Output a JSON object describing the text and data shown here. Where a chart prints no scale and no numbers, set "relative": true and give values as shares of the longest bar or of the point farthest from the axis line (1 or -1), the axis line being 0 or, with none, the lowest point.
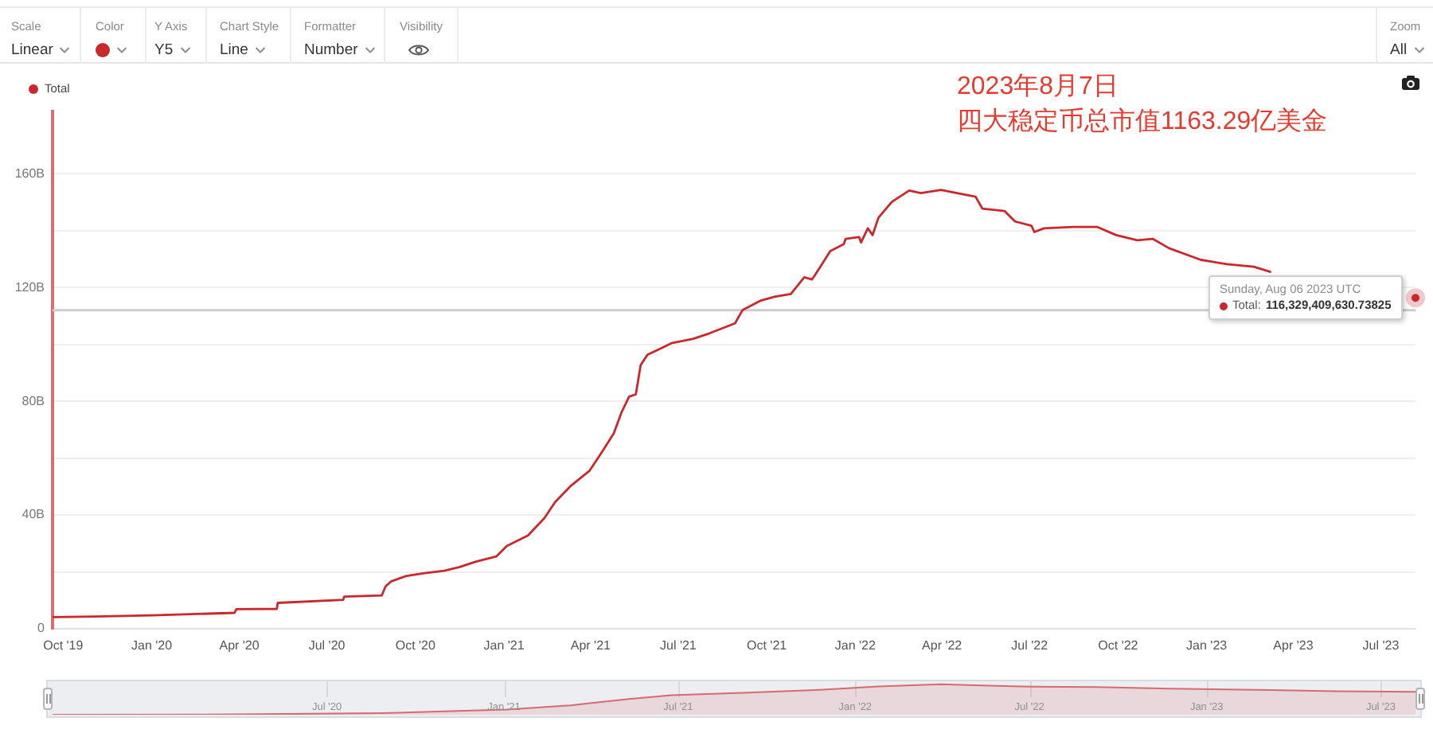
{
  "chart_data": [
    {
      "type": "line",
      "title": "2023年8月7日",
      "subtitle": "四大稳定币总市值1163.29亿美金",
      "x": [
        "2019-09-20",
        "2019-11-03",
        "2020-01-02",
        "2020-03-27",
        "2020-03-29",
        "2020-05-10",
        "2020-05-11",
        "2020-07-18",
        "2020-07-19",
        "2020-08-27",
        "2020-08-31",
        "2020-09-06",
        "2020-09-22",
        "2020-10-09",
        "2020-10-31",
        "2020-11-16",
        "2020-12-03",
        "2020-12-24",
        "2021-01-04",
        "2021-01-26",
        "2021-02-12",
        "2021-02-23",
        "2021-03-11",
        "2021-03-31",
        "2021-04-11",
        "2021-04-25",
        "2021-05-03",
        "2021-05-11",
        "2021-05-18",
        "2021-05-23",
        "2021-05-30",
        "2021-06-13",
        "2021-06-24",
        "2021-07-16",
        "2021-08-02",
        "2021-08-29",
        "2021-09-06",
        "2021-09-25",
        "2021-10-09",
        "2021-10-26",
        "2021-11-09",
        "2021-11-17",
        "2021-11-25",
        "2021-12-06",
        "2021-12-20",
        "2021-12-22",
        "2022-01-05",
        "2022-01-07",
        "2022-01-14",
        "2022-01-19",
        "2022-01-25",
        "2022-02-08",
        "2022-02-26",
        "2022-03-10",
        "2022-03-31",
        "2022-04-22",
        "2022-05-06",
        "2022-05-13",
        "2022-06-05",
        "2022-06-16",
        "2022-07-03",
        "2022-07-06",
        "2022-07-16",
        "2022-08-16",
        "2022-09-09",
        "2022-09-29",
        "2022-10-21",
        "2022-11-06",
        "2022-11-23",
        "2022-12-26",
        "2023-01-22",
        "2023-02-19",
        "2023-03-09"
      ],
      "series": [
        {
          "name": "Total",
          "color": "#c9282d",
          "values": [
            4.1,
            4.3,
            4.7,
            5.6,
            6.9,
            7.0,
            9.1,
            10.2,
            11.3,
            11.7,
            14.9,
            16.7,
            18.6,
            19.5,
            20.4,
            21.7,
            23.6,
            25.4,
            29.1,
            32.8,
            38.9,
            44.5,
            50.1,
            55.6,
            61.2,
            68.6,
            76.0,
            81.6,
            82.4,
            92.7,
            96.3,
            98.6,
            100.4,
            101.9,
            103.8,
            107.4,
            112.1,
            115.4,
            116.7,
            117.7,
            123.6,
            122.8,
            126.9,
            132.8,
            135.2,
            137.1,
            137.7,
            135.8,
            140.8,
            138.4,
            144.5,
            150.1,
            154.1,
            153.2,
            154.3,
            152.8,
            151.9,
            147.7,
            146.9,
            143.2,
            141.7,
            139.5,
            140.8,
            141.3,
            141.3,
            138.4,
            136.6,
            137.1,
            133.8,
            129.7,
            128.2,
            127.3,
            125.4
          ]
        }
      ],
      "xlim": [
        "2019-09-20",
        "2023-08-06"
      ],
      "xticks": [
        {
          "value": "2019-10-01",
          "label": "Oct '19"
        },
        {
          "value": "2020-01-01",
          "label": "Jan '20"
        },
        {
          "value": "2020-04-01",
          "label": "Apr '20"
        },
        {
          "value": "2020-07-01",
          "label": "Jul '20"
        },
        {
          "value": "2020-10-01",
          "label": "Oct '20"
        },
        {
          "value": "2021-01-01",
          "label": "Jan '21"
        },
        {
          "value": "2021-04-01",
          "label": "Apr '21"
        },
        {
          "value": "2021-07-01",
          "label": "Jul '21"
        },
        {
          "value": "2021-10-01",
          "label": "Oct '21"
        },
        {
          "value": "2022-01-01",
          "label": "Jan '22"
        },
        {
          "value": "2022-04-01",
          "label": "Apr '22"
        },
        {
          "value": "2022-07-01",
          "label": "Jul '22"
        },
        {
          "value": "2022-10-01",
          "label": "Oct '22"
        },
        {
          "value": "2023-01-01",
          "label": "Jan '23"
        },
        {
          "value": "2023-04-01",
          "label": "Apr '23"
        },
        {
          "value": "2023-07-01",
          "label": "Jul '23"
        }
      ],
      "ylim": [
        0,
        182
      ],
      "yticks": [
        0,
        {
          "value": 20,
          "label": null
        },
        {
          "value": 40,
          "label": "40B"
        },
        {
          "value": 60,
          "label": null
        },
        {
          "value": 80,
          "label": "80B"
        },
        {
          "value": 100,
          "label": null
        },
        {
          "value": 120,
          "label": "120B"
        },
        {
          "value": 140,
          "label": null
        },
        {
          "value": 160,
          "label": "160B"
        }
      ],
      "grid": "y",
      "legend": "top left",
      "ref_lines": [
        {
          "axis": "y",
          "value": 112,
          "color": "#cccccc"
        }
      ],
      "annotations": [
        {
          "text": "Sunday, Aug 06 2023 UTC\nTotal: 116,329,409,630.73825",
          "x": "2023-08-06",
          "y": 116.33
        },
        "Scale",
        "Linear",
        "Color",
        "Y Axis",
        "Y5",
        "Chart Style",
        "Line",
        "Formatter",
        "Number",
        "Visibility",
        "Zoom",
        "All"
      ]
    },
    {
      "type": "area",
      "relative": true,
      "x": [
        "2019-09-20",
        "2020-03-27",
        "2020-08-27",
        "2020-10-31",
        "2021-01-04",
        "2021-03-11",
        "2021-05-11",
        "2021-06-24",
        "2021-09-06",
        "2021-11-25",
        "2022-01-25",
        "2022-03-31",
        "2022-05-13",
        "2022-07-03",
        "2022-09-09",
        "2022-11-23",
        "2023-01-22",
        "2023-03-09",
        "2023-05-15",
        "2023-08-06"
      ],
      "series": [
        {
          "color": "#d66a6e",
          "values": [
            0,
            0.01,
            0.05,
            0.11,
            0.17,
            0.31,
            0.52,
            0.64,
            0.72,
            0.82,
            0.93,
            1,
            0.96,
            0.92,
            0.91,
            0.86,
            0.83,
            0.81,
            0.77,
            0.75
          ]
        }
      ],
      "xlim": [
        "2019-09-20",
        "2023-08-06"
      ],
      "xticks": [
        {
          "value": "2020-07-01",
          "label": "Jul '20"
        },
        {
          "value": "2021-01-01",
          "label": "Jan '21"
        },
        {
          "value": "2021-07-01",
          "label": "Jul '21"
        },
        {
          "value": "2022-01-01",
          "label": "Jan '22"
        },
        {
          "value": "2022-07-01",
          "label": "Jul '22"
        },
        {
          "value": "2023-01-01",
          "label": "Jan '23"
        },
        {
          "value": "2023-07-01",
          "label": "Jul '23"
        }
      ],
      "grid": "x"
    }
  ]
}
